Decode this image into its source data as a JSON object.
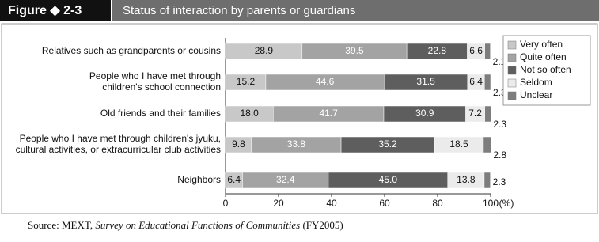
{
  "figure_label": "Figure ◆ 2-3",
  "source": [
    "Source: MEXT, ",
    "Survey on Educational Functions of Communities",
    " (FY2005)"
  ],
  "chart_data": {
    "type": "stacked_bar_horizontal",
    "title": "Status of interaction by parents or guardians",
    "categories": [
      [
        "Relatives such as grandparents or cousins"
      ],
      [
        "People who I have met through",
        "children's school connection"
      ],
      [
        "Old friends and their families"
      ],
      [
        "People who I have met through children's jyuku,",
        "cultural activities, or extracurricular club activities"
      ],
      [
        "Neighbors"
      ]
    ],
    "series": [
      {
        "name": "Very often",
        "color": "#c8c8c8",
        "values": [
          28.9,
          15.2,
          18.0,
          9.8,
          6.4
        ],
        "value_labels": [
          "28.9",
          "15.2",
          "18.0",
          "9.8",
          "6.4"
        ]
      },
      {
        "name": "Quite often",
        "color": "#a3a3a3",
        "values": [
          39.5,
          44.6,
          41.7,
          33.8,
          32.4
        ]
      },
      {
        "name": "Not so often",
        "color": "#5e5e5e",
        "values": [
          22.8,
          31.5,
          30.9,
          35.2,
          45.0
        ],
        "value_labels": [
          "22.8",
          "31.5",
          "30.9",
          "35.2",
          "45.0"
        ]
      },
      {
        "name": "Seldom",
        "color": "#ebebeb",
        "values": [
          6.6,
          6.4,
          7.2,
          18.5,
          13.8
        ]
      },
      {
        "name": "Unclear",
        "color": "#7d7d7d",
        "values": [
          2.1,
          2.3,
          2.3,
          2.8,
          2.3
        ]
      }
    ],
    "xlim": [
      0,
      100
    ],
    "xticks": [
      0,
      20,
      40,
      60,
      80,
      100
    ],
    "xlabel": "(%)",
    "legend": "right"
  }
}
